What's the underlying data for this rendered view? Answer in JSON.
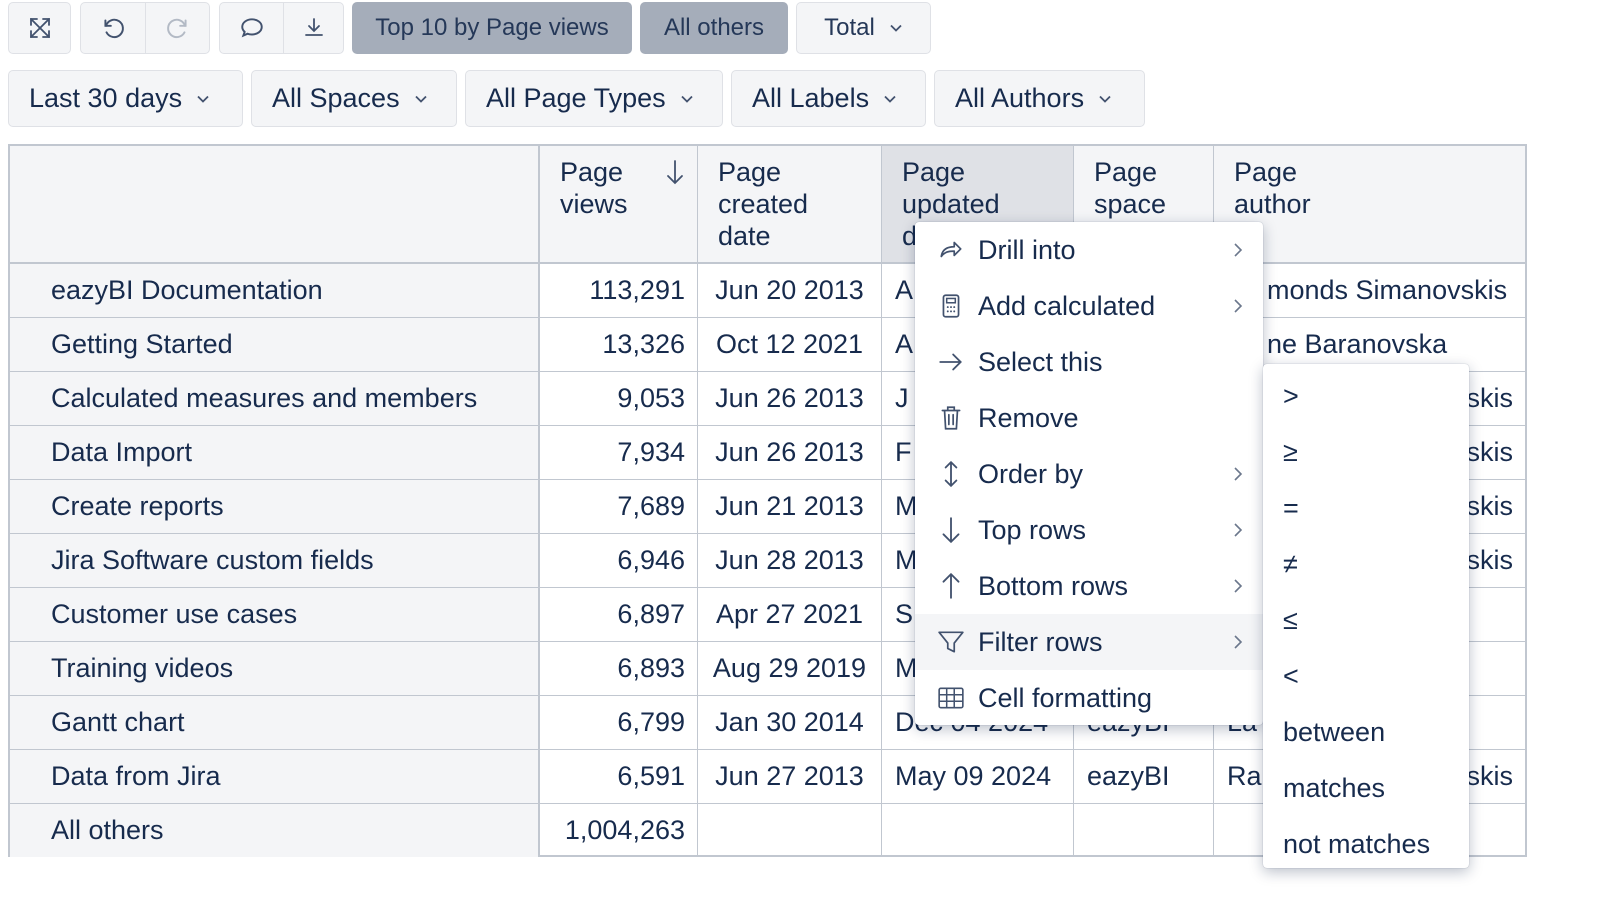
{
  "toolbar": {
    "fullscreen_icon": "expand-arrows-icon",
    "undo_icon": "undo-icon",
    "redo_icon": "redo-icon",
    "comment_icon": "comment-icon",
    "export_icon": "download-icon",
    "top10_label": "Top 10 by Page views",
    "all_others_label": "All others",
    "total_label": "Total"
  },
  "filters": [
    {
      "label": "Last 30 days"
    },
    {
      "label": "All Spaces"
    },
    {
      "label": "All Page Types"
    },
    {
      "label": "All Labels"
    },
    {
      "label": "All Authors"
    }
  ],
  "table": {
    "columns": [
      {
        "line1": "Page",
        "line2": "views",
        "line3": ""
      },
      {
        "line1": "Page",
        "line2": "created",
        "line3": "date"
      },
      {
        "line1": "Page",
        "line2": "updated",
        "line3": "d"
      },
      {
        "line1": "Page",
        "line2": "space",
        "line3": ""
      },
      {
        "line1": "Page",
        "line2": "author",
        "line3": ""
      }
    ],
    "sort_icon": "sort-descending-icon",
    "rows": [
      {
        "name": "eazyBI Documentation",
        "views": "113,291",
        "created": "Jun 20 2013",
        "updated": "A",
        "space": "",
        "author": "monds Simanovskis"
      },
      {
        "name": "Getting Started",
        "views": "13,326",
        "created": "Oct 12 2021",
        "updated": "A",
        "space": "",
        "author": "ne Baranovska"
      },
      {
        "name": "Calculated measures and members",
        "views": "9,053",
        "created": "Jun 26 2013",
        "updated": "J",
        "space": "",
        "author": "skis"
      },
      {
        "name": "Data Import",
        "views": "7,934",
        "created": "Jun 26 2013",
        "updated": "F",
        "space": "",
        "author": "skis"
      },
      {
        "name": "Create reports",
        "views": "7,689",
        "created": "Jun 21 2013",
        "updated": "M",
        "space": "",
        "author": "skis"
      },
      {
        "name": "Jira Software custom fields",
        "views": "6,946",
        "created": "Jun 28 2013",
        "updated": "M",
        "space": "",
        "author": "skis"
      },
      {
        "name": "Customer use cases",
        "views": "6,897",
        "created": "Apr 27 2021",
        "updated": "S",
        "space": "",
        "author": ""
      },
      {
        "name": "Training videos",
        "views": "6,893",
        "created": "Aug 29 2019",
        "updated": "M",
        "space": "",
        "author": ""
      },
      {
        "name": "Gantt chart",
        "views": "6,799",
        "created": "Jan 30 2014",
        "updated": "Dec 04 2024",
        "space": "eazyBI",
        "author": "La"
      },
      {
        "name": "Data from Jira",
        "views": "6,591",
        "created": "Jun 27 2013",
        "updated": "May 09 2024",
        "space": "eazyBI",
        "author": "Rai",
        "author_tail": "skis"
      },
      {
        "name": "All others",
        "views": "1,004,263",
        "created": "",
        "updated": "",
        "space": "",
        "author": ""
      }
    ]
  },
  "context_menu": {
    "items": [
      {
        "label": "Drill into",
        "icon": "share-arrow-icon",
        "has_submenu": true
      },
      {
        "label": "Add calculated",
        "icon": "calculator-icon",
        "has_submenu": true
      },
      {
        "label": "Select this",
        "icon": "arrow-right-icon",
        "has_submenu": false
      },
      {
        "label": "Remove",
        "icon": "trash-icon",
        "has_submenu": false
      },
      {
        "label": "Order by",
        "icon": "sort-vertical-icon",
        "has_submenu": true
      },
      {
        "label": "Top rows",
        "icon": "arrow-down-icon",
        "has_submenu": true
      },
      {
        "label": "Bottom rows",
        "icon": "arrow-up-icon",
        "has_submenu": true
      },
      {
        "label": "Filter rows",
        "icon": "filter-icon",
        "has_submenu": true,
        "highlighted": true
      },
      {
        "label": "Cell formatting",
        "icon": "table-icon",
        "has_submenu": false
      }
    ]
  },
  "filter_submenu": {
    "items": [
      ">",
      "≥",
      "=",
      "≠",
      "≤",
      "<",
      "between",
      "matches",
      "not matches"
    ]
  }
}
